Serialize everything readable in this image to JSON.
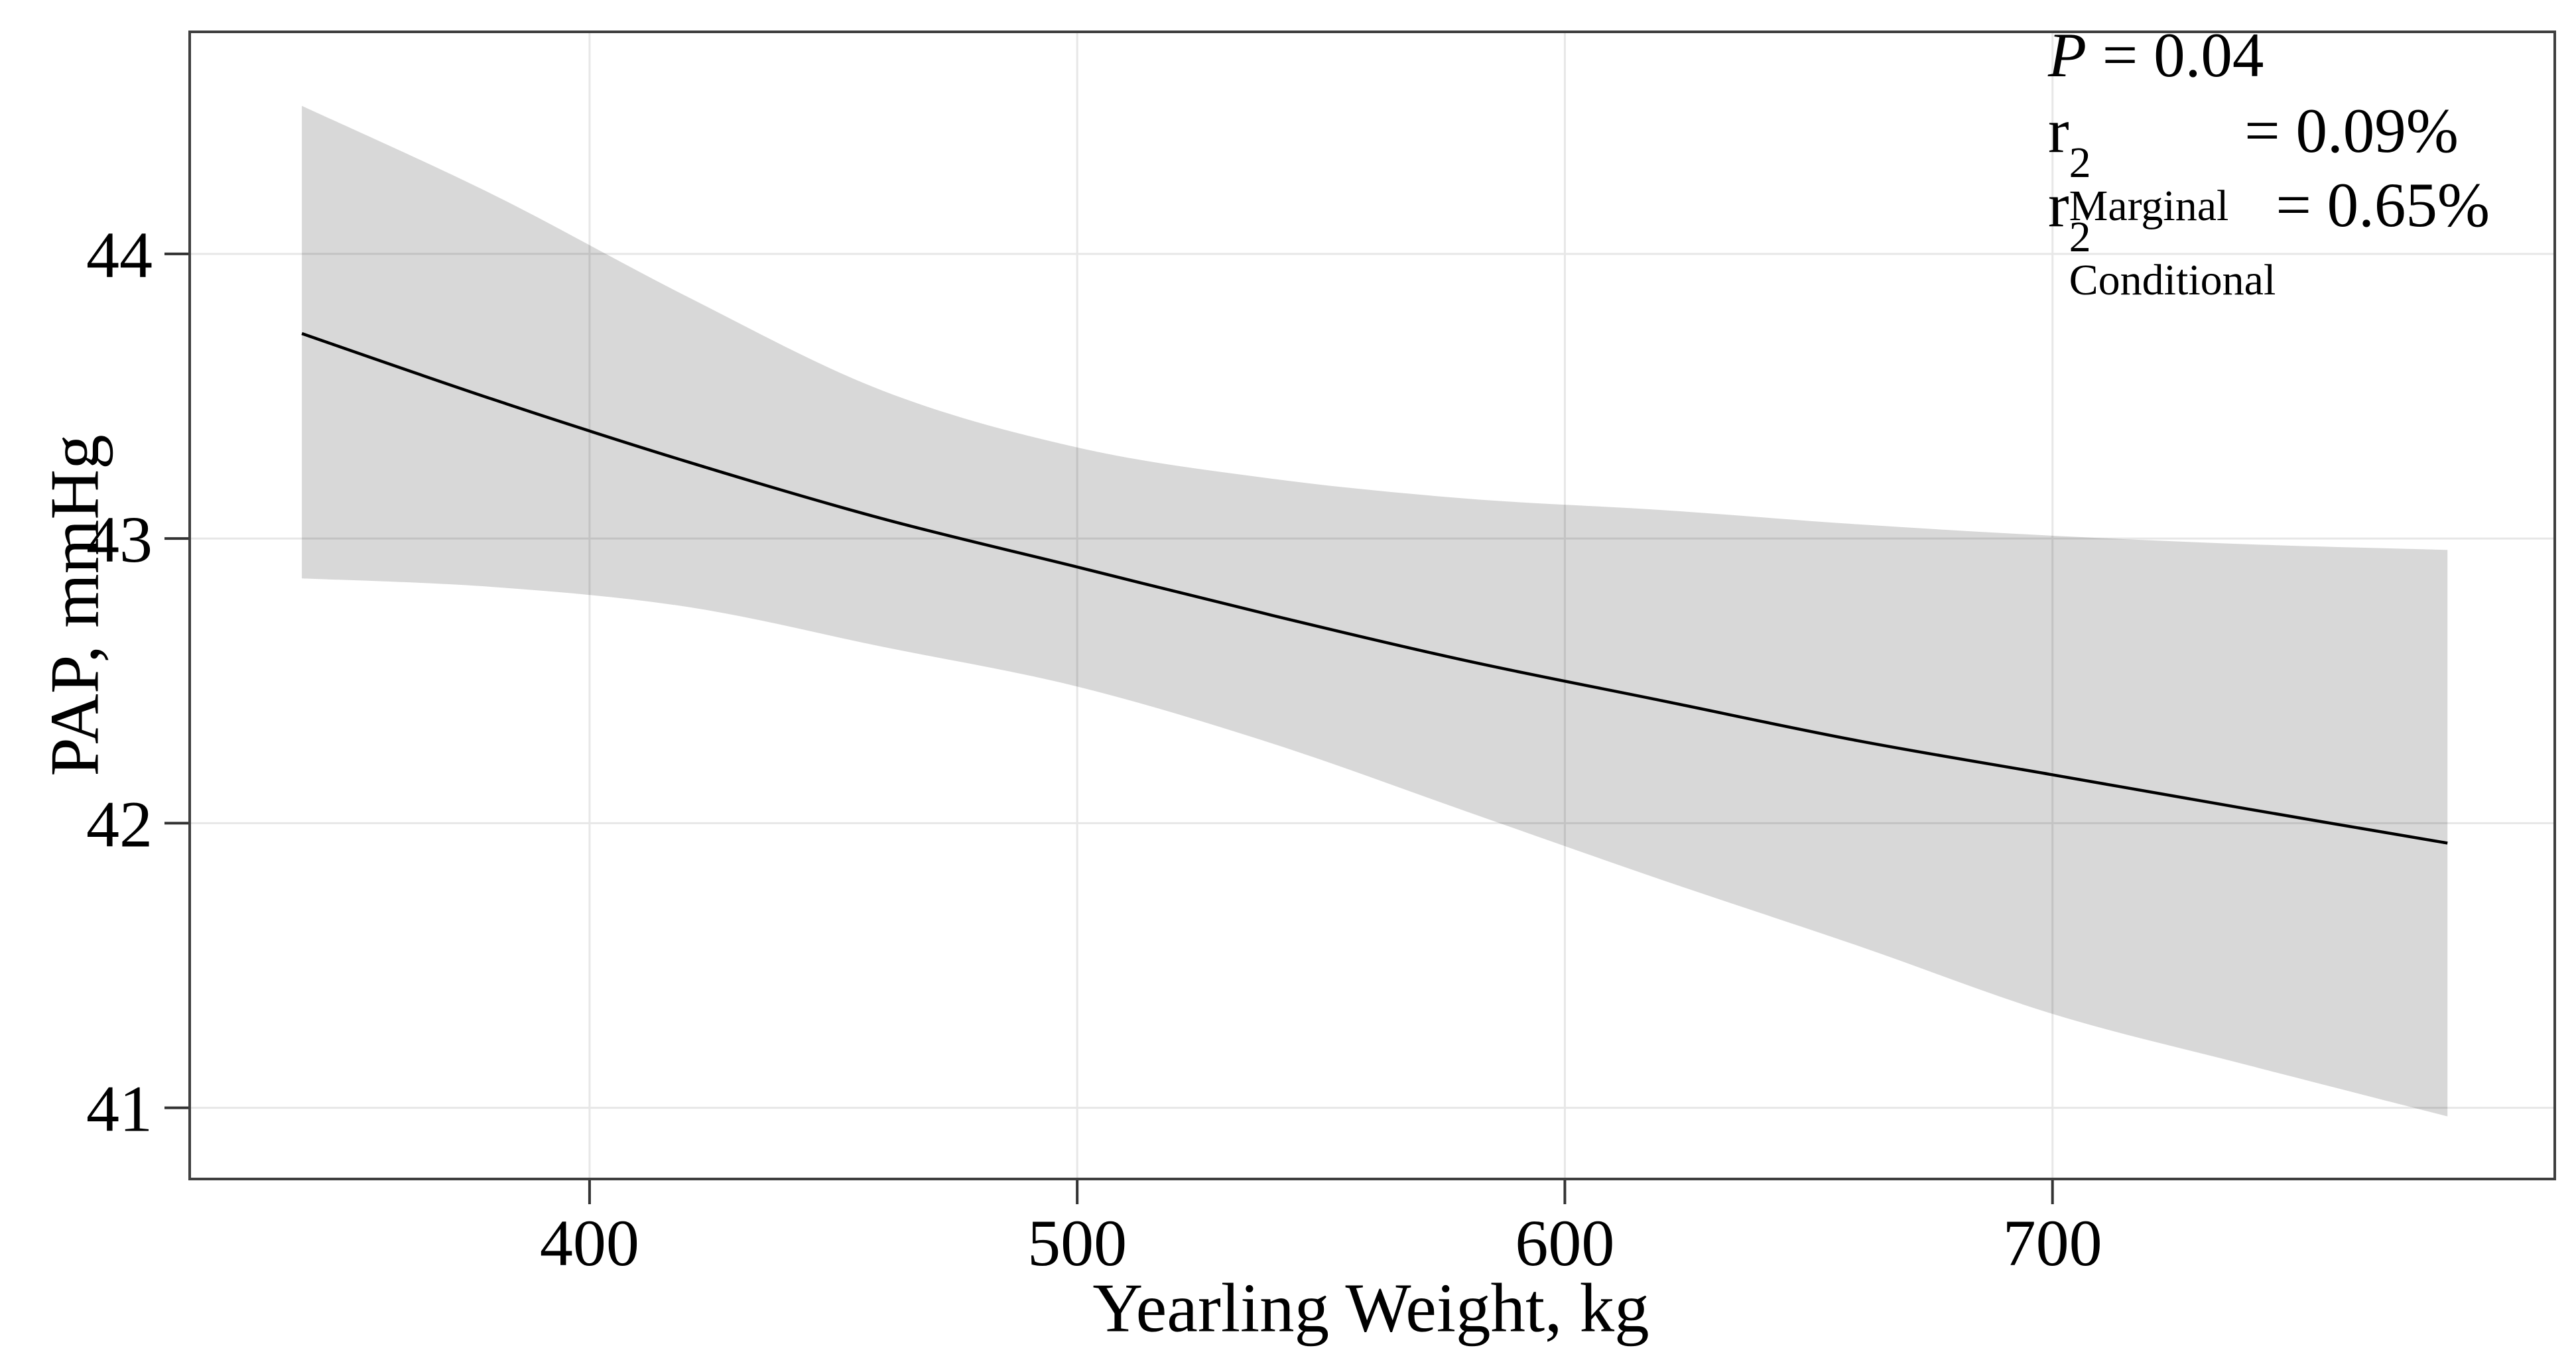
{
  "axes": {
    "x_title": "Yearling Weight, kg",
    "y_title": "PAP, mmHg"
  },
  "annotation": {
    "p_line": {
      "symbol": "P",
      "rest": " = 0.04"
    },
    "r2_marginal": {
      "base": "r",
      "sup": "2",
      "sub": "Marginal",
      "rest": " = 0.09%"
    },
    "r2_conditional": {
      "base": "r",
      "sup": "2",
      "sub": "Conditional",
      "rest": "= 0.65%"
    }
  },
  "chart_data": {
    "type": "line",
    "title": "",
    "xlabel": "Yearling Weight, kg",
    "ylabel": "PAP, mmHg",
    "xlim": [
      318,
      803
    ],
    "ylim": [
      40.75,
      44.78
    ],
    "x_ticks": [
      400,
      500,
      600,
      700
    ],
    "y_ticks": [
      41,
      42,
      43,
      44
    ],
    "grid": "major-only",
    "legend": "none",
    "annotation_position": "top-right",
    "stats": {
      "p_value": "0.04",
      "r2_marginal": "0.09%",
      "r2_conditional": "0.65%"
    },
    "series": [
      {
        "name": "fitted regression line",
        "x": [
          341,
          380,
          420,
          460,
          500,
          540,
          580,
          620,
          660,
          700,
          740,
          781
        ],
        "y": [
          43.72,
          43.49,
          43.27,
          43.07,
          42.9,
          42.73,
          42.57,
          42.43,
          42.29,
          42.17,
          42.05,
          41.93
        ]
      },
      {
        "name": "95% confidence ribbon",
        "x": [
          341,
          380,
          420,
          460,
          500,
          540,
          580,
          620,
          660,
          700,
          740,
          781
        ],
        "upper": [
          44.52,
          44.21,
          43.85,
          43.52,
          43.32,
          43.21,
          43.14,
          43.1,
          43.05,
          43.01,
          42.98,
          42.96
        ],
        "lower": [
          42.86,
          42.83,
          42.76,
          42.62,
          42.48,
          42.28,
          42.04,
          41.8,
          41.57,
          41.33,
          41.15,
          40.97
        ]
      }
    ],
    "colors": {
      "line": "#000000",
      "ribbon": "#d8d8d8",
      "grid": "#e7e7e7",
      "panel_border": "#3f3f3f",
      "tick": "#333333",
      "text": "#000000",
      "background": "#ffffff"
    }
  }
}
